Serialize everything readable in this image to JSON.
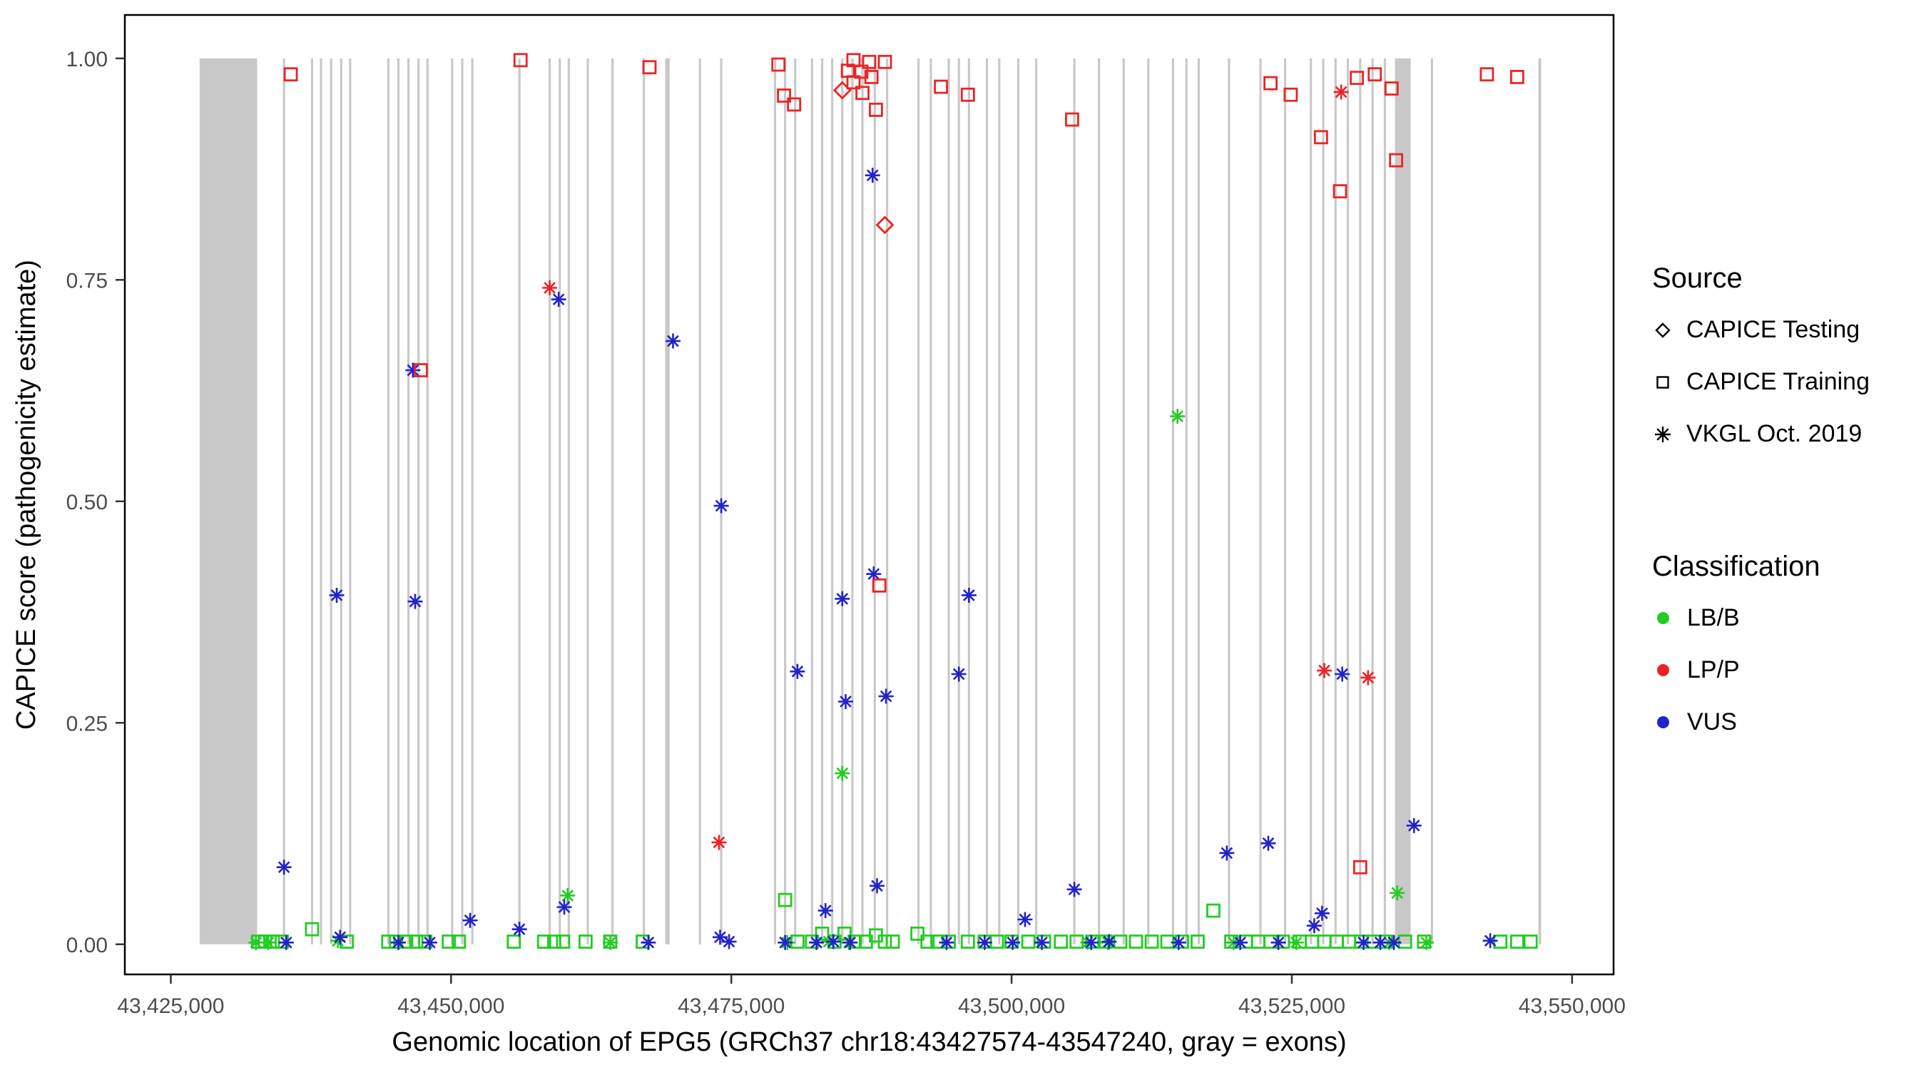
{
  "chart_data": {
    "type": "scatter",
    "title": "",
    "xlabel": "Genomic location of EPG5 (GRCh37 chr18:43427574-43547240, gray = exons)",
    "ylabel": "CAPICE score (pathogenicity estimate)",
    "xlim": [
      43420900,
      43553700
    ],
    "ylim": [
      -0.034,
      1.049
    ],
    "xticks": [
      43425000,
      43450000,
      43475000,
      43500000,
      43525000,
      43550000
    ],
    "xtick_labels": [
      "43,425,000",
      "43,450,000",
      "43,475,000",
      "43,500,000",
      "43,525,000",
      "43,550,000"
    ],
    "yticks": [
      0,
      0.25,
      0.5,
      0.75,
      1.0
    ],
    "ytick_labels": [
      "0.00",
      "0.25",
      "0.50",
      "0.75",
      "1.00"
    ],
    "grid": "off",
    "legend_position": "right",
    "exon_color": "#c8c8c8",
    "colors": {
      "LB/B": "#22CC22",
      "LP/P": "#EE2222",
      "VUS": "#2222CC"
    },
    "legend": {
      "source": {
        "title": "Source",
        "items": [
          {
            "label": "CAPICE Testing",
            "shape": "diamond"
          },
          {
            "label": "CAPICE Training",
            "shape": "square"
          },
          {
            "label": "VKGL Oct. 2019",
            "shape": "asterisk"
          }
        ]
      },
      "classification": {
        "title": "Classification",
        "items": [
          {
            "label": "LB/B",
            "color": "#22CC22"
          },
          {
            "label": "LP/P",
            "color": "#EE2222"
          },
          {
            "label": "VUS",
            "color": "#2222CC"
          }
        ]
      }
    },
    "exons": [
      [
        43427574,
        43432700
      ],
      [
        43435000,
        43435200
      ],
      [
        43437500,
        43437700
      ],
      [
        43438300,
        43438500
      ],
      [
        43439200,
        43439400
      ],
      [
        43440100,
        43440300
      ],
      [
        43440900,
        43441100
      ],
      [
        43444300,
        43444500
      ],
      [
        43445200,
        43445400
      ],
      [
        43446100,
        43446300
      ],
      [
        43447000,
        43447200
      ],
      [
        43447800,
        43448000
      ],
      [
        43450000,
        43450200
      ],
      [
        43450900,
        43451100
      ],
      [
        43451800,
        43452000
      ],
      [
        43456000,
        43456200
      ],
      [
        43458700,
        43458900
      ],
      [
        43459600,
        43459800
      ],
      [
        43460400,
        43460600
      ],
      [
        43462100,
        43462300
      ],
      [
        43464300,
        43464500
      ],
      [
        43467100,
        43467300
      ],
      [
        43469100,
        43469500
      ],
      [
        43472100,
        43472300
      ],
      [
        43474000,
        43474200
      ],
      [
        43478800,
        43479000
      ],
      [
        43479700,
        43479900
      ],
      [
        43480600,
        43480800
      ],
      [
        43482100,
        43482300
      ],
      [
        43483000,
        43483200
      ],
      [
        43483900,
        43484100
      ],
      [
        43484800,
        43485000
      ],
      [
        43485700,
        43485900
      ],
      [
        43486600,
        43486800
      ],
      [
        43487700,
        43487900
      ],
      [
        43488800,
        43489000
      ],
      [
        43491600,
        43491800
      ],
      [
        43492700,
        43492900
      ],
      [
        43494300,
        43494500
      ],
      [
        43495200,
        43495400
      ],
      [
        43496100,
        43496300
      ],
      [
        43497700,
        43497900
      ],
      [
        43498800,
        43499000
      ],
      [
        43500500,
        43500700
      ],
      [
        43502100,
        43502300
      ],
      [
        43505500,
        43505700
      ],
      [
        43507700,
        43507900
      ],
      [
        43509900,
        43510100
      ],
      [
        43512100,
        43512300
      ],
      [
        43514300,
        43514500
      ],
      [
        43515500,
        43515700
      ],
      [
        43516600,
        43516800
      ],
      [
        43519300,
        43519500
      ],
      [
        43522100,
        43522300
      ],
      [
        43524300,
        43524500
      ],
      [
        43526600,
        43526800
      ],
      [
        43527700,
        43527900
      ],
      [
        43528800,
        43529000
      ],
      [
        43529900,
        43530100
      ],
      [
        43531000,
        43531200
      ],
      [
        43532100,
        43532300
      ],
      [
        43533200,
        43533400
      ],
      [
        43534200,
        43535600
      ],
      [
        43537400,
        43537600
      ],
      [
        43547000,
        43547240
      ]
    ],
    "series": [
      {
        "name": "CAPICE Training - LB/B",
        "source": "CAPICE Training",
        "shape": "square",
        "classification": "LB/B",
        "points": [
          [
            43432800,
            0.003
          ],
          [
            43433400,
            0.003
          ],
          [
            43434100,
            0.003
          ],
          [
            43434900,
            0.003
          ],
          [
            43437600,
            0.017
          ],
          [
            43440700,
            0.003
          ],
          [
            43444400,
            0.003
          ],
          [
            43445100,
            0.003
          ],
          [
            43446000,
            0.003
          ],
          [
            43446900,
            0.003
          ],
          [
            43447700,
            0.003
          ],
          [
            43449800,
            0.003
          ],
          [
            43450700,
            0.003
          ],
          [
            43455600,
            0.003
          ],
          [
            43458300,
            0.003
          ],
          [
            43459200,
            0.003
          ],
          [
            43460000,
            0.003
          ],
          [
            43462000,
            0.003
          ],
          [
            43464200,
            0.003
          ],
          [
            43467100,
            0.003
          ],
          [
            43479800,
            0.05
          ],
          [
            43480900,
            0.003
          ],
          [
            43482200,
            0.003
          ],
          [
            43483100,
            0.012
          ],
          [
            43484200,
            0.003
          ],
          [
            43485100,
            0.012
          ],
          [
            43486000,
            0.003
          ],
          [
            43487000,
            0.003
          ],
          [
            43487900,
            0.01
          ],
          [
            43488700,
            0.003
          ],
          [
            43489400,
            0.003
          ],
          [
            43491600,
            0.012
          ],
          [
            43492500,
            0.003
          ],
          [
            43493400,
            0.003
          ],
          [
            43494400,
            0.003
          ],
          [
            43496100,
            0.003
          ],
          [
            43497600,
            0.003
          ],
          [
            43498700,
            0.003
          ],
          [
            43500000,
            0.003
          ],
          [
            43501500,
            0.003
          ],
          [
            43502900,
            0.003
          ],
          [
            43504400,
            0.003
          ],
          [
            43505800,
            0.003
          ],
          [
            43507200,
            0.003
          ],
          [
            43508400,
            0.003
          ],
          [
            43509700,
            0.003
          ],
          [
            43511100,
            0.003
          ],
          [
            43512500,
            0.003
          ],
          [
            43513900,
            0.003
          ],
          [
            43515200,
            0.003
          ],
          [
            43516600,
            0.003
          ],
          [
            43518000,
            0.038
          ],
          [
            43519600,
            0.003
          ],
          [
            43520900,
            0.003
          ],
          [
            43522000,
            0.003
          ],
          [
            43523100,
            0.003
          ],
          [
            43524200,
            0.003
          ],
          [
            43525700,
            0.003
          ],
          [
            43526800,
            0.003
          ],
          [
            43527900,
            0.003
          ],
          [
            43529000,
            0.003
          ],
          [
            43530100,
            0.003
          ],
          [
            43531200,
            0.003
          ],
          [
            43532300,
            0.003
          ],
          [
            43533400,
            0.003
          ],
          [
            43535100,
            0.003
          ],
          [
            43536800,
            0.003
          ],
          [
            43543600,
            0.003
          ],
          [
            43545100,
            0.003
          ],
          [
            43546300,
            0.003
          ]
        ]
      },
      {
        "name": "VKGL Oct. 2019 - LB/B",
        "source": "VKGL Oct. 2019",
        "shape": "asterisk",
        "classification": "LB/B",
        "points": [
          [
            43460400,
            0.055
          ],
          [
            43484900,
            0.193
          ],
          [
            43514800,
            0.596
          ],
          [
            43534400,
            0.058
          ],
          [
            43432600,
            0.002
          ],
          [
            43433700,
            0.002
          ],
          [
            43439900,
            0.004
          ],
          [
            43464200,
            0.002
          ],
          [
            43480000,
            0.002
          ],
          [
            43483700,
            0.003
          ],
          [
            43485500,
            0.002
          ],
          [
            43506800,
            0.002
          ],
          [
            43508600,
            0.002
          ],
          [
            43519800,
            0.002
          ],
          [
            43525400,
            0.002
          ],
          [
            43533700,
            0.002
          ],
          [
            43537000,
            0.002
          ]
        ]
      },
      {
        "name": "VKGL Oct. 2019 - VUS",
        "source": "VKGL Oct. 2019",
        "shape": "asterisk",
        "classification": "VUS",
        "points": [
          [
            43435100,
            0.087
          ],
          [
            43435300,
            0.002
          ],
          [
            43439800,
            0.394
          ],
          [
            43440100,
            0.008
          ],
          [
            43446600,
            0.648
          ],
          [
            43446800,
            0.387
          ],
          [
            43451700,
            0.027
          ],
          [
            43456100,
            0.017
          ],
          [
            43459600,
            0.728
          ],
          [
            43460100,
            0.042
          ],
          [
            43469800,
            0.681
          ],
          [
            43474100,
            0.495
          ],
          [
            43474000,
            0.008
          ],
          [
            43480900,
            0.308
          ],
          [
            43483400,
            0.038
          ],
          [
            43484900,
            0.39
          ],
          [
            43485200,
            0.274
          ],
          [
            43487600,
            0.868
          ],
          [
            43487700,
            0.418
          ],
          [
            43488800,
            0.28
          ],
          [
            43488000,
            0.066
          ],
          [
            43495300,
            0.305
          ],
          [
            43496200,
            0.394
          ],
          [
            43501200,
            0.028
          ],
          [
            43505600,
            0.062
          ],
          [
            43519200,
            0.103
          ],
          [
            43522900,
            0.114
          ],
          [
            43529500,
            0.305
          ],
          [
            43535900,
            0.134
          ],
          [
            43527700,
            0.035
          ],
          [
            43527000,
            0.021
          ],
          [
            43445300,
            0.002
          ],
          [
            43448100,
            0.002
          ],
          [
            43467600,
            0.002
          ],
          [
            43474800,
            0.003
          ],
          [
            43479800,
            0.002
          ],
          [
            43482600,
            0.002
          ],
          [
            43484100,
            0.003
          ],
          [
            43485600,
            0.002
          ],
          [
            43494200,
            0.002
          ],
          [
            43497600,
            0.002
          ],
          [
            43500100,
            0.002
          ],
          [
            43502700,
            0.002
          ],
          [
            43507100,
            0.002
          ],
          [
            43508700,
            0.003
          ],
          [
            43514900,
            0.002
          ],
          [
            43520400,
            0.002
          ],
          [
            43523800,
            0.002
          ],
          [
            43531400,
            0.002
          ],
          [
            43532900,
            0.002
          ],
          [
            43534100,
            0.002
          ],
          [
            43542700,
            0.004
          ]
        ]
      },
      {
        "name": "CAPICE Training - LP/P",
        "source": "CAPICE Training",
        "shape": "square",
        "classification": "LP/P",
        "points": [
          [
            43435700,
            0.982
          ],
          [
            43447300,
            0.648
          ],
          [
            43456200,
            0.998
          ],
          [
            43467700,
            0.99
          ],
          [
            43479200,
            0.993
          ],
          [
            43479700,
            0.958
          ],
          [
            43480600,
            0.948
          ],
          [
            43485400,
            0.986
          ],
          [
            43485900,
            0.998
          ],
          [
            43485900,
            0.973
          ],
          [
            43486600,
            0.985
          ],
          [
            43486700,
            0.961
          ],
          [
            43487300,
            0.996
          ],
          [
            43487500,
            0.979
          ],
          [
            43487900,
            0.942
          ],
          [
            43488700,
            0.996
          ],
          [
            43488200,
            0.405
          ],
          [
            43493700,
            0.968
          ],
          [
            43496100,
            0.959
          ],
          [
            43505400,
            0.931
          ],
          [
            43523100,
            0.972
          ],
          [
            43524900,
            0.959
          ],
          [
            43527600,
            0.911
          ],
          [
            43529300,
            0.85
          ],
          [
            43530800,
            0.978
          ],
          [
            43531100,
            0.087
          ],
          [
            43532400,
            0.982
          ],
          [
            43533900,
            0.966
          ],
          [
            43534300,
            0.885
          ],
          [
            43542400,
            0.982
          ],
          [
            43545100,
            0.979
          ]
        ]
      },
      {
        "name": "CAPICE Testing - LP/P",
        "source": "CAPICE Testing",
        "shape": "diamond",
        "classification": "LP/P",
        "points": [
          [
            43484900,
            0.964
          ],
          [
            43488700,
            0.812
          ]
        ]
      },
      {
        "name": "VKGL Oct. 2019 - LP/P",
        "source": "VKGL Oct. 2019",
        "shape": "asterisk",
        "classification": "LP/P",
        "points": [
          [
            43458800,
            0.741
          ],
          [
            43473900,
            0.115
          ],
          [
            43529400,
            0.962
          ],
          [
            43527900,
            0.309
          ],
          [
            43531800,
            0.301
          ]
        ]
      }
    ]
  }
}
